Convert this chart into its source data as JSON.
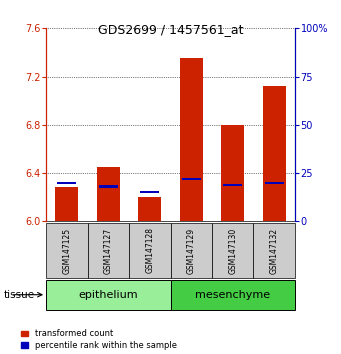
{
  "title": "GDS2699 / 1457561_at",
  "samples": [
    "GSM147125",
    "GSM147127",
    "GSM147128",
    "GSM147129",
    "GSM147130",
    "GSM147132"
  ],
  "transformed_count": [
    6.28,
    6.45,
    6.2,
    7.35,
    6.8,
    7.12
  ],
  "percentile_rank": [
    20,
    18,
    15,
    22,
    19,
    20
  ],
  "ylim_left": [
    6.0,
    7.6
  ],
  "ylim_right": [
    0,
    100
  ],
  "yticks_left": [
    6.0,
    6.4,
    6.8,
    7.2,
    7.6
  ],
  "yticks_right": [
    0,
    25,
    50,
    75,
    100
  ],
  "tissue_groups": [
    {
      "label": "epithelium",
      "start": 0,
      "end": 2,
      "color": "#99ee99"
    },
    {
      "label": "mesenchyme",
      "start": 3,
      "end": 5,
      "color": "#44cc44"
    }
  ],
  "bar_color_red": "#cc2200",
  "bar_color_blue": "#0000bb",
  "bar_width": 0.55,
  "baseline": 6.0,
  "tissue_label": "tissue",
  "legend_red": "transformed count",
  "legend_blue": "percentile rank within the sample",
  "left_axis_color": "#cc2200",
  "right_axis_color": "#0000bb",
  "grid_color": "#000000",
  "sample_box_color": "#cccccc",
  "title_fontsize": 9,
  "tick_fontsize": 7,
  "sample_fontsize": 5.5,
  "tissue_fontsize": 8,
  "legend_fontsize": 6
}
